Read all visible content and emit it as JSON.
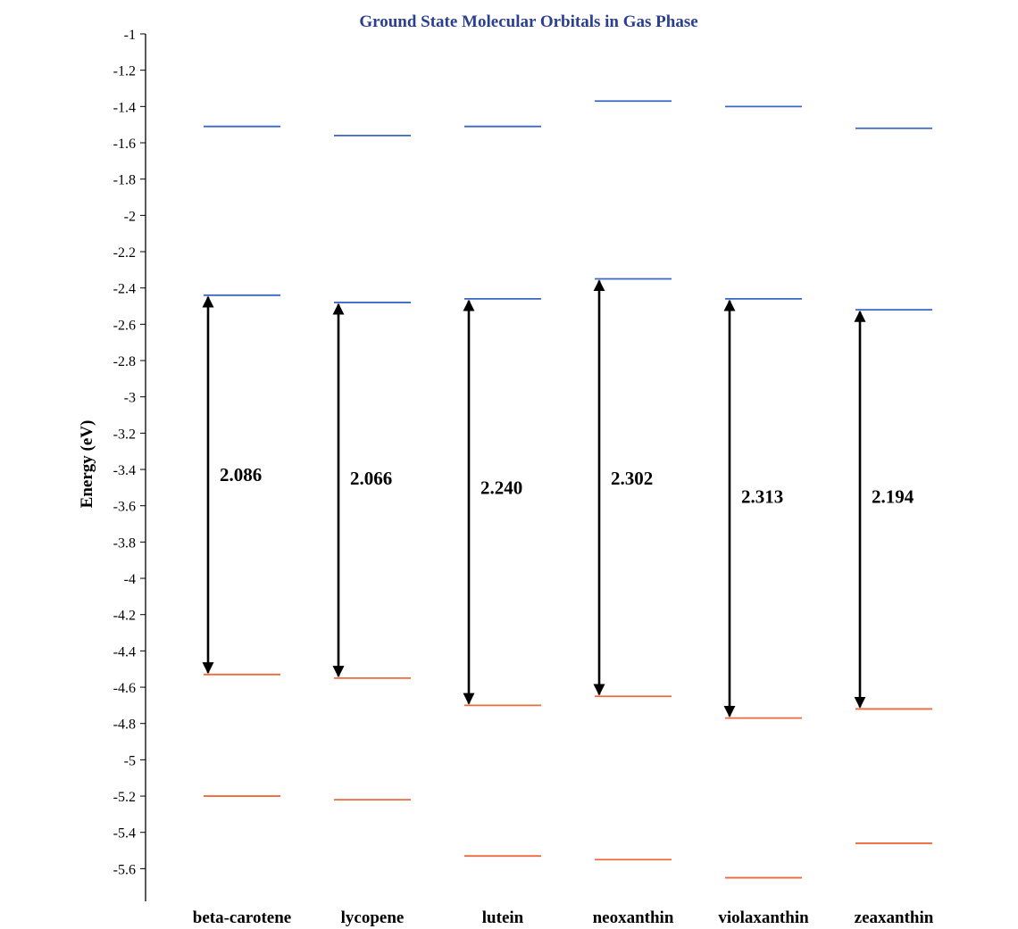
{
  "chart_data": {
    "type": "energy-level-diagram",
    "title": "Ground State Molecular Orbitals in Gas Phase",
    "ylabel": "Energy (eV)",
    "xlabel": "",
    "ylim": [
      -5.78,
      -1.0
    ],
    "yticks": [
      -1,
      -1.2,
      -1.4,
      -1.6,
      -1.8,
      -2,
      -2.2,
      -2.4,
      -2.6,
      -2.8,
      -3,
      -3.2,
      -3.4,
      -3.6,
      -3.8,
      -4,
      -4.2,
      -4.4,
      -4.6,
      -4.8,
      -5,
      -5.2,
      -5.4,
      -5.6
    ],
    "ytick_labels": [
      "-1",
      "-1.2",
      "-1.4",
      "-1.6",
      "-1.8",
      "-2",
      "-2.2",
      "-2.4",
      "-2.6",
      "-2.8",
      "-3",
      "-3.2",
      "-3.4",
      "-3.6",
      "-3.8",
      "-4",
      "-4.2",
      "-4.4",
      "-4.6",
      "-4.8",
      "-5",
      "-5.2",
      "-5.4",
      "-5.6"
    ],
    "categories": [
      "beta-carotene",
      "lycopene",
      "lutein",
      "neoxanthin",
      "violaxanthin",
      "zeaxanthin"
    ],
    "lumo1": [
      -1.51,
      -1.56,
      -1.51,
      -1.37,
      -1.4,
      -1.52
    ],
    "lumo": [
      -2.44,
      -2.48,
      -2.46,
      -2.35,
      -2.46,
      -2.52
    ],
    "homo": [
      -4.53,
      -4.55,
      -4.7,
      -4.65,
      -4.77,
      -4.72
    ],
    "homo1": [
      -5.2,
      -5.22,
      -5.53,
      -5.55,
      -5.65,
      -5.46
    ],
    "gap_values": [
      -3.43,
      -3.45,
      -3.5,
      -3.45,
      -3.55,
      -3.55
    ],
    "gap_labels": [
      "2.086",
      "2.066",
      "2.240",
      "2.302",
      "2.313",
      "2.194"
    ],
    "colors": {
      "unoccupied": "#3a66c4",
      "occupied": "#ee6a3c",
      "arrow": "#000000",
      "title": "#2b3f8f"
    }
  }
}
